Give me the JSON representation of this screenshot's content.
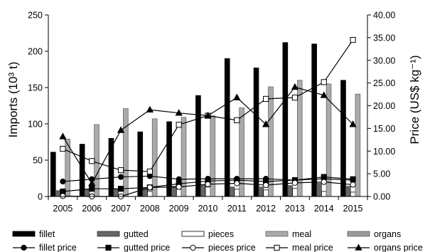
{
  "chart_data": {
    "type": "bar",
    "categories": [
      "2005",
      "2006",
      "2007",
      "2008",
      "2009",
      "2010",
      "2011",
      "2012",
      "2013",
      "2014",
      "2015"
    ],
    "xlabel": "",
    "ylabel_left": "Imports (10³ t)",
    "ylabel_right": "Price (US$ kg⁻¹)",
    "ylim_left": [
      0,
      250
    ],
    "ylim_right": [
      0,
      40
    ],
    "yticks_left": [
      "0",
      "50",
      "100",
      "150",
      "200",
      "250"
    ],
    "yticks_right": [
      "0.00",
      "5.00",
      "10.00",
      "15.00",
      "20.00",
      "25.00",
      "30.00",
      "35.00",
      "40.00"
    ],
    "grid": false,
    "legend_position": "bottom",
    "bar_series": [
      {
        "name": "fillet",
        "color": "#000000",
        "stroke": "#000000",
        "values": [
          61,
          72,
          80,
          89,
          103,
          139,
          190,
          177,
          212,
          210,
          160
        ]
      },
      {
        "name": "gutted",
        "color": "#666666",
        "stroke": "#333333",
        "values": [
          8,
          10,
          10,
          11,
          14,
          16,
          13,
          13,
          15,
          18,
          14
        ]
      },
      {
        "name": "pieces",
        "color": "#ffffff",
        "stroke": "#000000",
        "values": [
          2,
          3,
          2,
          7,
          10,
          13,
          10,
          9,
          11,
          7,
          6
        ]
      },
      {
        "name": "meal",
        "color": "#aaaaaa",
        "stroke": "#666666",
        "values": [
          79,
          99,
          121,
          107,
          109,
          111,
          122,
          151,
          160,
          155,
          141
        ]
      },
      {
        "name": "organs",
        "color": "#999999",
        "stroke": "#666666",
        "values": [
          0,
          0,
          0,
          0,
          0,
          0,
          0,
          0,
          0,
          0,
          0
        ]
      }
    ],
    "line_series": [
      {
        "name": "fillet price",
        "marker": "circle",
        "fill": "#000000",
        "values": [
          3.3,
          3.8,
          4.3,
          4.5,
          3.8,
          3.9,
          3.9,
          3.9,
          3.6,
          3.9,
          3.6
        ]
      },
      {
        "name": "gutted price",
        "marker": "square",
        "fill": "#000000",
        "values": [
          1.1,
          1.7,
          1.7,
          2.0,
          2.8,
          3.4,
          3.6,
          3.3,
          3.6,
          4.3,
          3.8
        ]
      },
      {
        "name": "pieces price",
        "marker": "circle",
        "fill": "#ffffff",
        "values": [
          0.1,
          0.0,
          0.0,
          2.0,
          2.1,
          2.7,
          2.9,
          2.5,
          3.0,
          3.2,
          2.6
        ]
      },
      {
        "name": "meal price",
        "marker": "square",
        "fill": "#ffffff",
        "values": [
          10.5,
          7.8,
          5.8,
          5.5,
          15.8,
          17.8,
          16.8,
          21.5,
          21.8,
          25.2,
          34.5
        ]
      },
      {
        "name": "organs price",
        "marker": "triangle",
        "fill": "#000000",
        "values": [
          13.2,
          2.9,
          14.6,
          19.1,
          18.4,
          17.8,
          21.8,
          15.9,
          24.1,
          22.3,
          15.9
        ]
      }
    ]
  }
}
